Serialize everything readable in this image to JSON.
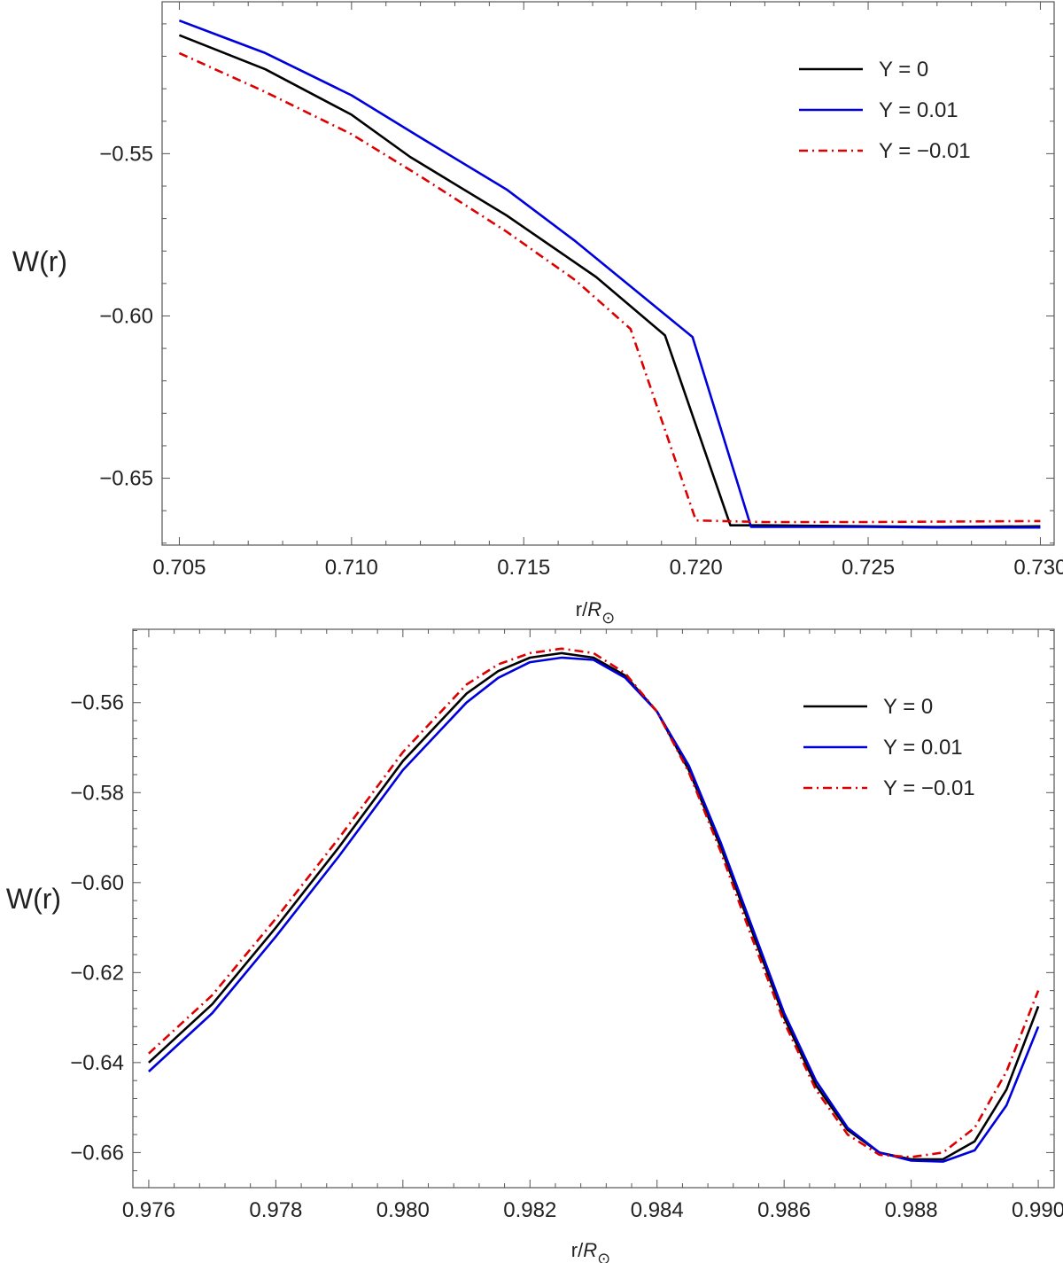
{
  "chart_data": [
    {
      "type": "line",
      "id": "top",
      "xlabel": "r/",
      "xlabel_sym": "R",
      "xlabel_sub": "⊙",
      "ylabel": "W(r)",
      "xlim": [
        0.7045,
        0.7304
      ],
      "ylim": [
        -0.6706,
        -0.5032
      ],
      "xticks": [
        "0.705",
        "0.710",
        "0.715",
        "0.720",
        "0.725",
        "0.730"
      ],
      "xtick_values": [
        0.705,
        0.71,
        0.715,
        0.72,
        0.725,
        0.73
      ],
      "yticks": [
        "−0.55",
        "−0.60",
        "−0.65"
      ],
      "ytick_values": [
        -0.55,
        -0.6,
        -0.65
      ],
      "legend_position": "top-right",
      "series": [
        {
          "name": "Y = 0",
          "color": "#000000",
          "dash": "solid",
          "x": [
            0.705,
            0.7075,
            0.71,
            0.7117,
            0.7145,
            0.7171,
            0.7191,
            0.721,
            0.722,
            0.725,
            0.727,
            0.73
          ],
          "y": [
            -0.5135,
            -0.524,
            -0.538,
            -0.551,
            -0.569,
            -0.588,
            -0.606,
            -0.6645,
            -0.6645,
            -0.6648,
            -0.665,
            -0.6648
          ]
        },
        {
          "name": "Y = 0.01",
          "color": "#0000dd",
          "dash": "solid",
          "x": [
            0.705,
            0.7075,
            0.71,
            0.712,
            0.7145,
            0.7165,
            0.718,
            0.7199,
            0.7216,
            0.725,
            0.727,
            0.73
          ],
          "y": [
            -0.509,
            -0.519,
            -0.532,
            -0.545,
            -0.561,
            -0.577,
            -0.59,
            -0.6065,
            -0.665,
            -0.665,
            -0.6652,
            -0.6652
          ]
        },
        {
          "name": "Y = −0.01",
          "color": "#dd0000",
          "dash": "dashdot",
          "x": [
            0.705,
            0.7075,
            0.71,
            0.712,
            0.7145,
            0.7165,
            0.7181,
            0.72,
            0.722,
            0.725,
            0.73
          ],
          "y": [
            -0.519,
            -0.531,
            -0.544,
            -0.557,
            -0.574,
            -0.589,
            -0.604,
            -0.663,
            -0.6635,
            -0.6635,
            -0.6632
          ]
        }
      ]
    },
    {
      "type": "line",
      "id": "bottom",
      "xlabel": "r/",
      "xlabel_sym": "R",
      "xlabel_sub": "⊙",
      "ylabel": "W(r)",
      "xlim": [
        0.97575,
        0.99025
      ],
      "ylim": [
        -0.6678,
        -0.5437
      ],
      "xticks": [
        "0.976",
        "0.978",
        "0.980",
        "0.982",
        "0.984",
        "0.986",
        "0.988",
        "0.990"
      ],
      "xtick_values": [
        0.976,
        0.978,
        0.98,
        0.982,
        0.984,
        0.986,
        0.988,
        0.99
      ],
      "yticks": [
        "−0.56",
        "−0.58",
        "−0.60",
        "−0.62",
        "−0.64",
        "−0.66"
      ],
      "ytick_values": [
        -0.56,
        -0.58,
        -0.6,
        -0.62,
        -0.64,
        -0.66
      ],
      "legend_position": "top-right",
      "series": [
        {
          "name": "Y = 0",
          "color": "#000000",
          "dash": "solid",
          "x": [
            0.976,
            0.977,
            0.978,
            0.979,
            0.98,
            0.981,
            0.9815,
            0.982,
            0.9825,
            0.983,
            0.9835,
            0.984,
            0.9845,
            0.985,
            0.9855,
            0.986,
            0.9865,
            0.987,
            0.9875,
            0.988,
            0.9885,
            0.989,
            0.9895,
            0.99
          ],
          "y": [
            -0.64,
            -0.627,
            -0.61,
            -0.592,
            -0.573,
            -0.558,
            -0.553,
            -0.55,
            -0.549,
            -0.55,
            -0.554,
            -0.562,
            -0.575,
            -0.592,
            -0.611,
            -0.63,
            -0.645,
            -0.655,
            -0.66,
            -0.6615,
            -0.6615,
            -0.6575,
            -0.646,
            -0.6275
          ]
        },
        {
          "name": "Y = 0.01",
          "color": "#0000dd",
          "dash": "solid",
          "x": [
            0.976,
            0.977,
            0.978,
            0.979,
            0.98,
            0.981,
            0.9815,
            0.982,
            0.9825,
            0.983,
            0.9835,
            0.984,
            0.9845,
            0.985,
            0.9855,
            0.986,
            0.9865,
            0.987,
            0.9875,
            0.988,
            0.9885,
            0.989,
            0.9895,
            0.99
          ],
          "y": [
            -0.642,
            -0.629,
            -0.612,
            -0.594,
            -0.575,
            -0.56,
            -0.5545,
            -0.551,
            -0.55,
            -0.5505,
            -0.5545,
            -0.562,
            -0.574,
            -0.591,
            -0.61,
            -0.629,
            -0.644,
            -0.6545,
            -0.66,
            -0.6618,
            -0.662,
            -0.6595,
            -0.6495,
            -0.632
          ]
        },
        {
          "name": "Y = −0.01",
          "color": "#dd0000",
          "dash": "dashdot",
          "x": [
            0.976,
            0.977,
            0.978,
            0.979,
            0.98,
            0.981,
            0.9815,
            0.982,
            0.9825,
            0.983,
            0.9835,
            0.984,
            0.9845,
            0.985,
            0.9855,
            0.986,
            0.9865,
            0.987,
            0.9875,
            0.988,
            0.9885,
            0.989,
            0.9895,
            0.99
          ],
          "y": [
            -0.638,
            -0.625,
            -0.608,
            -0.59,
            -0.571,
            -0.556,
            -0.5515,
            -0.549,
            -0.548,
            -0.549,
            -0.5535,
            -0.562,
            -0.5755,
            -0.593,
            -0.6125,
            -0.631,
            -0.646,
            -0.656,
            -0.6605,
            -0.661,
            -0.66,
            -0.6545,
            -0.642,
            -0.624
          ]
        }
      ]
    }
  ]
}
